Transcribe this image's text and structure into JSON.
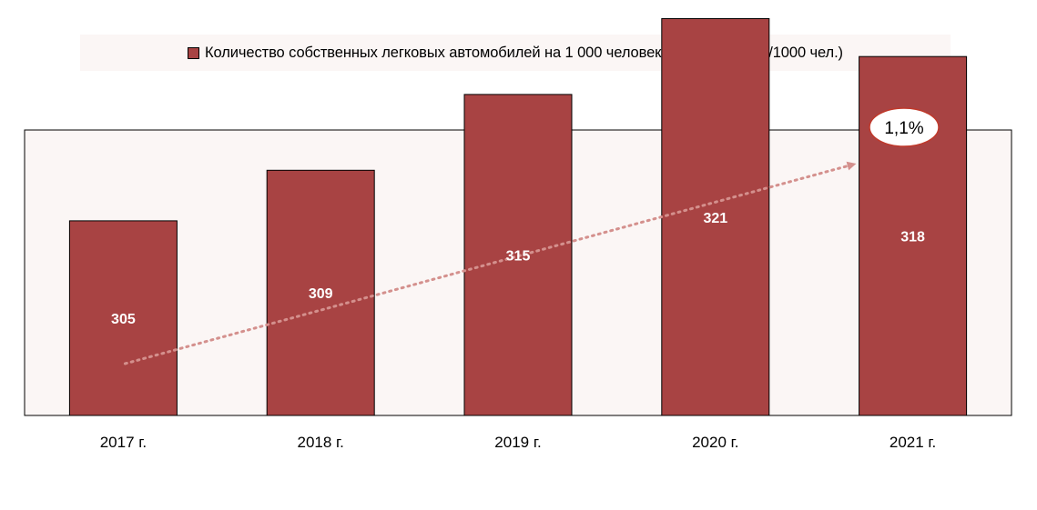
{
  "chart_data": {
    "type": "bar",
    "categories": [
      "2017 г.",
      "2018 г.",
      "2019 г.",
      "2020 г.",
      "2021 г."
    ],
    "series": [
      {
        "name": "Количество собственных легковых автомобилей на 1 000 человек населения  (шт./1000 чел.)",
        "values": [
          305,
          309,
          315,
          321,
          318
        ]
      }
    ],
    "data_labels": [
      "305",
      "309",
      "315",
      "321",
      "318"
    ],
    "trend_annotation": "1,1%",
    "legend_position": "top",
    "grid": false,
    "y_axis_visible": false,
    "colors": {
      "bar": "#a84343",
      "trend_arrow": "#d4908d",
      "plot_background": "#fbf6f5",
      "badge_border": "#c0392b"
    }
  }
}
